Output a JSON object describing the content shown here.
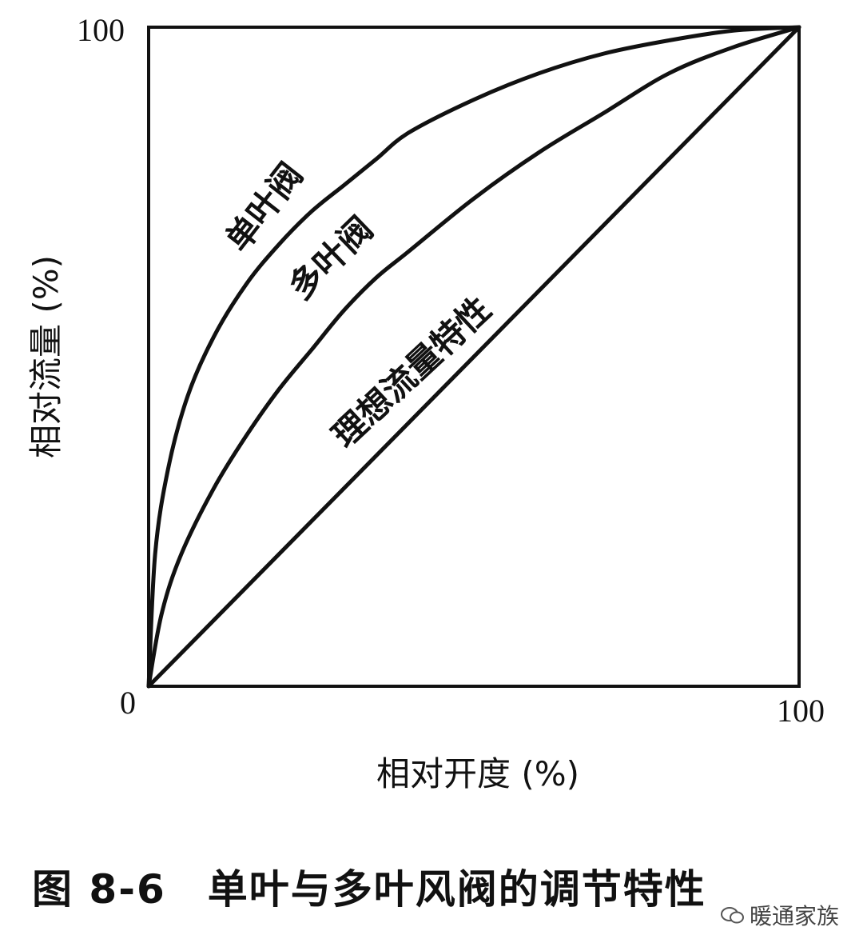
{
  "chart_data": {
    "type": "line",
    "xlabel": "相对开度 (%)",
    "ylabel": "相对流量 (%)",
    "xlim": [
      0,
      100
    ],
    "ylim": [
      0,
      100
    ],
    "x_ticks": [
      "0",
      "100"
    ],
    "y_ticks": [
      "0",
      "100"
    ],
    "grid": false,
    "series": [
      {
        "name": "单叶阀",
        "x": [
          0,
          1,
          3,
          6,
          10,
          15,
          20,
          25,
          30,
          35,
          40,
          50,
          60,
          70,
          80,
          90,
          100
        ],
        "y": [
          0,
          20,
          33,
          44,
          53,
          61,
          67,
          72,
          76,
          80,
          84,
          89,
          93,
          96,
          98,
          99.5,
          100
        ]
      },
      {
        "name": "多叶阀",
        "x": [
          0,
          2,
          5,
          10,
          15,
          20,
          25,
          30,
          35,
          40,
          50,
          60,
          70,
          80,
          90,
          100
        ],
        "y": [
          0,
          11,
          20,
          30,
          38,
          45,
          51,
          57,
          62,
          66,
          74,
          81,
          87,
          93,
          97,
          100
        ]
      },
      {
        "name": "理想流量特性",
        "x": [
          0,
          100
        ],
        "y": [
          0,
          100
        ]
      }
    ]
  },
  "caption": "图 8-6　单叶与多叶风阀的调节特性",
  "watermark": "暖通家族"
}
